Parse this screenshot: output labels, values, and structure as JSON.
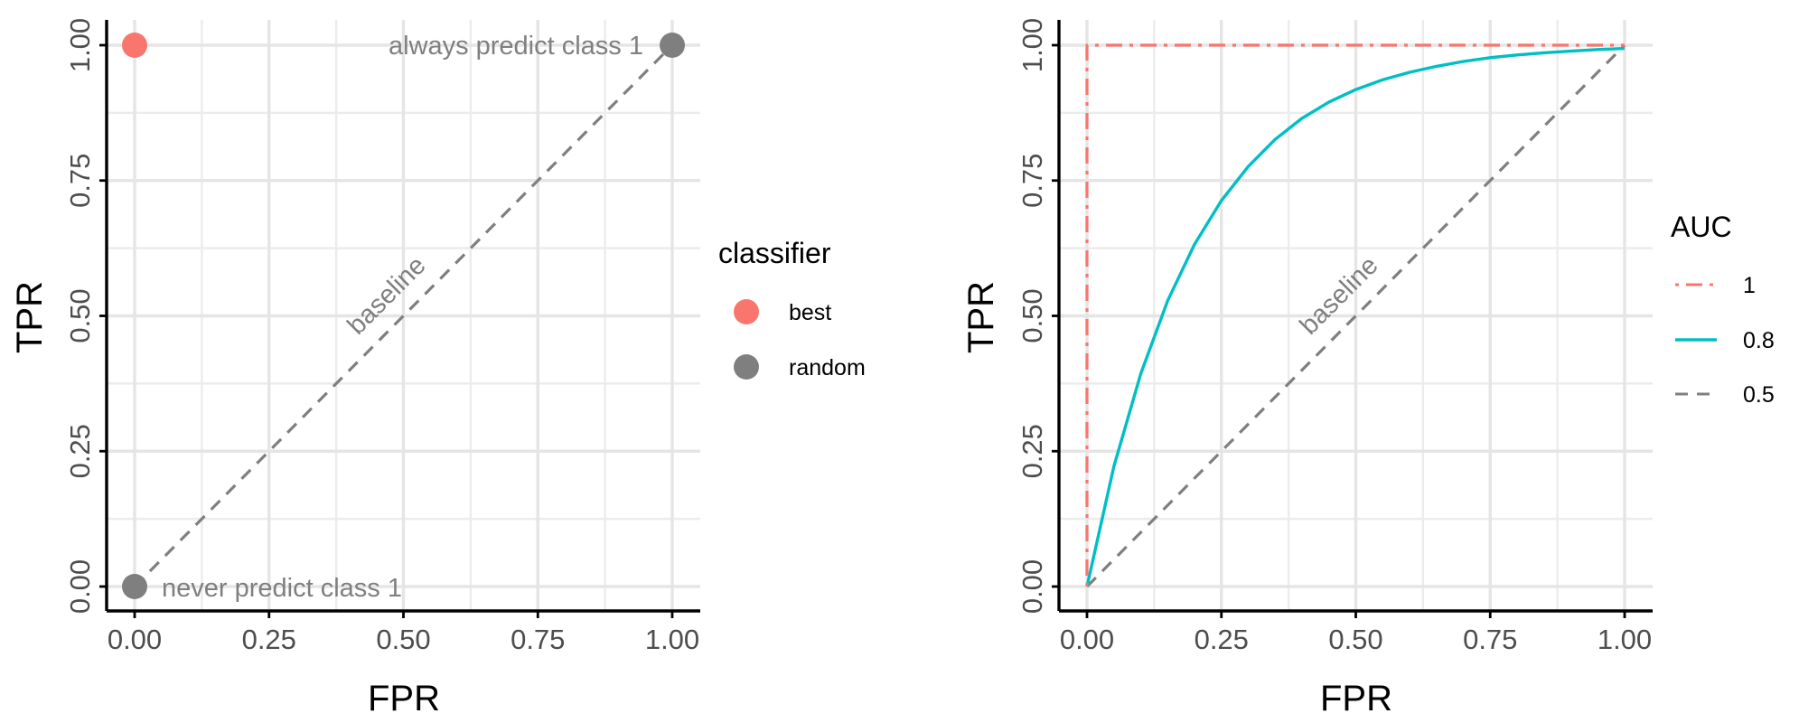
{
  "chart_data": [
    {
      "type": "scatter",
      "xlabel": "FPR",
      "ylabel": "TPR",
      "xlim": [
        0,
        1
      ],
      "ylim": [
        0,
        1
      ],
      "xticks": [
        "0.00",
        "0.25",
        "0.50",
        "0.75",
        "1.00"
      ],
      "yticks": [
        "0.00",
        "0.25",
        "0.50",
        "0.75",
        "1.00"
      ],
      "grid": true,
      "legend_title": "classifier",
      "legend_position": "right",
      "legend": [
        {
          "name": "best",
          "color": "#F8766D"
        },
        {
          "name": "random",
          "color": "#7F7F7F"
        }
      ],
      "points": [
        {
          "x": 0,
          "y": 1,
          "group": "best",
          "color": "#F8766D"
        },
        {
          "x": 1,
          "y": 1,
          "group": "random",
          "color": "#7F7F7F"
        },
        {
          "x": 0,
          "y": 0,
          "group": "random",
          "color": "#7F7F7F"
        }
      ],
      "reference_line": {
        "x": [
          0,
          1
        ],
        "y": [
          0,
          1
        ],
        "style": "dashed",
        "color": "#7F7F7F"
      },
      "annotations": [
        {
          "text": "always predict class 1",
          "x": 1,
          "y": 1
        },
        {
          "text": "never predict class 1",
          "x": 0,
          "y": 0
        },
        {
          "text": "baseline",
          "x": 0.5,
          "y": 0.5
        }
      ]
    },
    {
      "type": "line",
      "xlabel": "FPR",
      "ylabel": "TPR",
      "xlim": [
        0,
        1
      ],
      "ylim": [
        0,
        1
      ],
      "xticks": [
        "0.00",
        "0.25",
        "0.50",
        "0.75",
        "1.00"
      ],
      "yticks": [
        "0.00",
        "0.25",
        "0.50",
        "0.75",
        "1.00"
      ],
      "grid": true,
      "legend_title": "AUC",
      "legend_position": "right",
      "series": [
        {
          "name": "1",
          "style": "dotdash",
          "color": "#F8766D",
          "x": [
            0,
            0,
            1
          ],
          "y": [
            0,
            1,
            1
          ]
        },
        {
          "name": "0.8",
          "style": "solid",
          "color": "#00BFC4",
          "x": [
            0,
            0.05,
            0.1,
            0.15,
            0.2,
            0.25,
            0.3,
            0.35,
            0.4,
            0.45,
            0.5,
            0.55,
            0.6,
            0.65,
            0.7,
            0.75,
            0.8,
            0.85,
            0.9,
            0.95,
            1
          ],
          "y": [
            0,
            0.222,
            0.393,
            0.528,
            0.632,
            0.713,
            0.776,
            0.826,
            0.865,
            0.895,
            0.918,
            0.936,
            0.95,
            0.961,
            0.97,
            0.977,
            0.982,
            0.986,
            0.989,
            0.992,
            0.994
          ]
        },
        {
          "name": "0.5",
          "style": "dashed",
          "color": "#7F7F7F",
          "x": [
            0,
            1
          ],
          "y": [
            0,
            1
          ]
        }
      ],
      "annotations": [
        {
          "text": "baseline",
          "x": 0.5,
          "y": 0.5
        }
      ]
    }
  ]
}
